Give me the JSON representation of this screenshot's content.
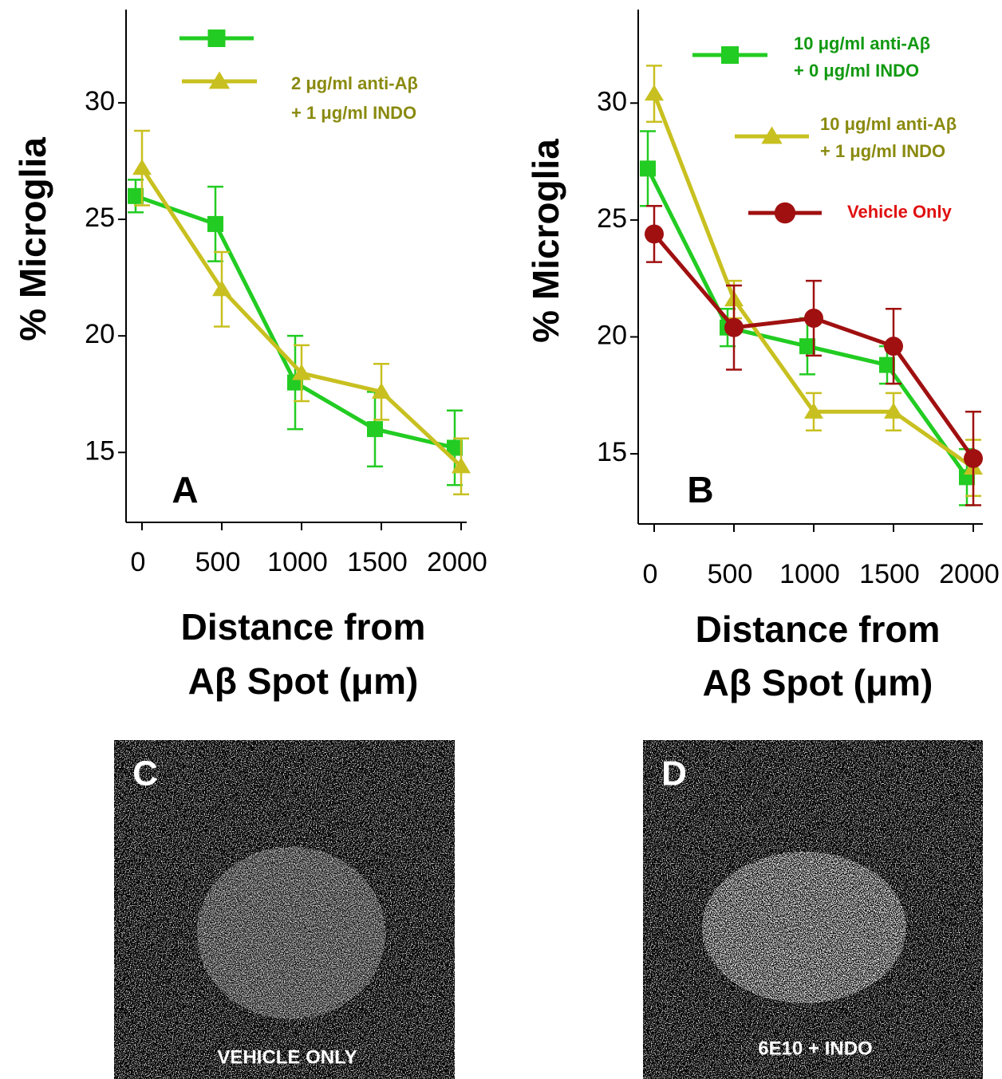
{
  "chart_data": [
    {
      "type": "line",
      "panel": "A",
      "ylabel": "% Microglia",
      "xlabel": [
        "Distance from",
        "Aβ Spot (μm)"
      ],
      "xlim": [
        -100,
        2035
      ],
      "xticks": [
        0,
        500,
        1000,
        1500,
        2000
      ],
      "ylim": [
        12,
        34
      ],
      "yticks": [
        15,
        20,
        25,
        30
      ],
      "series": [
        {
          "color": "#22cc22",
          "marker": "square",
          "x": [
            -40,
            460,
            960,
            1460,
            1960
          ],
          "values": [
            26.0,
            24.8,
            18.0,
            16.0,
            15.2
          ],
          "errors": [
            0.7,
            1.6,
            2.0,
            1.6,
            1.6
          ]
        },
        {
          "name": [
            "2 μg/ml anti-Aβ",
            "+ 1 μg/ml INDO"
          ],
          "color": "#c8c020",
          "text_color": "#8a8a10",
          "marker": "triangle",
          "x": [
            0,
            500,
            1000,
            1500,
            2000
          ],
          "values": [
            27.2,
            22.0,
            18.4,
            17.6,
            14.4
          ],
          "errors": [
            1.6,
            1.6,
            1.2,
            1.2,
            1.2
          ]
        }
      ]
    },
    {
      "type": "line",
      "panel": "B",
      "ylabel": "% Microglia",
      "xlabel": [
        "Distance from",
        "Aβ Spot (μm)"
      ],
      "xlim": [
        -100,
        2060
      ],
      "xticks": [
        0,
        500,
        1000,
        1500,
        2000
      ],
      "ylim": [
        12,
        34
      ],
      "yticks": [
        15,
        20,
        25,
        30
      ],
      "series": [
        {
          "name": [
            "10 μg/ml anti-Aβ",
            "+ 0 μg/ml INDO"
          ],
          "color": "#22cc22",
          "text_color": "#119911",
          "marker": "square",
          "x": [
            -40,
            460,
            960,
            1460,
            1960
          ],
          "values": [
            27.2,
            20.4,
            19.6,
            18.8,
            14.0
          ],
          "errors": [
            1.6,
            0.8,
            1.2,
            0.8,
            1.2
          ]
        },
        {
          "name": [
            "10 μg/ml anti-Aβ",
            "+ 1 μg/ml INDO"
          ],
          "color": "#c8c020",
          "text_color": "#8a8a10",
          "marker": "triangle",
          "x": [
            0,
            500,
            1000,
            1500,
            2000
          ],
          "values": [
            30.4,
            21.6,
            16.8,
            16.8,
            14.4
          ],
          "errors": [
            1.2,
            0.8,
            0.8,
            0.8,
            1.2
          ]
        },
        {
          "name": [
            "Vehicle Only"
          ],
          "color": "#a01010",
          "text_color": "#e01010",
          "marker": "circle",
          "x": [
            0,
            500,
            1000,
            1500,
            2000
          ],
          "values": [
            24.4,
            20.4,
            20.8,
            19.6,
            14.8
          ],
          "errors": [
            1.2,
            1.8,
            1.6,
            1.6,
            2.0
          ]
        }
      ]
    }
  ],
  "panels": [
    {
      "label": "C",
      "caption": "VEHICLE ONLY"
    },
    {
      "label": "D",
      "caption": "6E10 + INDO"
    }
  ]
}
